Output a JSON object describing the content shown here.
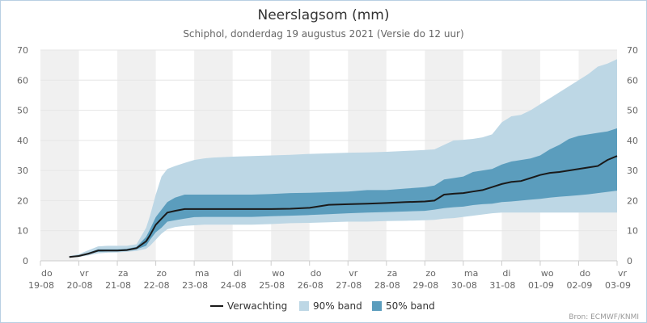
{
  "chart_data": {
    "type": "area",
    "title": "Neerslagsom (mm)",
    "subtitle": "Schiphol, donderdag 19 augustus 2021 (Versie do 12 uur)",
    "source": "Bron: ECMWF/KNMI",
    "x_unit": "days since 19-08 00:00",
    "xlim": [
      0,
      15
    ],
    "ylim": [
      0,
      70
    ],
    "y_ticks": [
      0,
      10,
      20,
      30,
      40,
      50,
      60,
      70
    ],
    "y_tick_labels": [
      "0",
      "10",
      "20",
      "30",
      "40",
      "50",
      "60",
      "70"
    ],
    "x_ticks": [
      {
        "day": "do",
        "date": "19-08"
      },
      {
        "day": "vr",
        "date": "20-08"
      },
      {
        "day": "za",
        "date": "21-08"
      },
      {
        "day": "zo",
        "date": "22-08"
      },
      {
        "day": "ma",
        "date": "23-08"
      },
      {
        "day": "di",
        "date": "24-08"
      },
      {
        "day": "wo",
        "date": "25-08"
      },
      {
        "day": "do",
        "date": "26-08"
      },
      {
        "day": "vr",
        "date": "27-08"
      },
      {
        "day": "za",
        "date": "28-08"
      },
      {
        "day": "zo",
        "date": "29-08"
      },
      {
        "day": "ma",
        "date": "30-08"
      },
      {
        "day": "di",
        "date": "31-08"
      },
      {
        "day": "wo",
        "date": "01-09"
      },
      {
        "day": "do",
        "date": "02-09"
      },
      {
        "day": "vr",
        "date": "03-09"
      }
    ],
    "shaded_days": [
      0,
      2,
      4,
      6,
      8,
      10,
      12,
      14
    ],
    "grid": true,
    "legend": {
      "placement": "bottom",
      "items": [
        {
          "label": "Verwachting",
          "kind": "line",
          "color": "#1a1a1a"
        },
        {
          "label": "90% band",
          "kind": "area",
          "color": "#bdd7e5"
        },
        {
          "label": "50% band",
          "kind": "area",
          "color": "#5b9dbd"
        }
      ]
    },
    "colors": {
      "band90": "#bdd7e5",
      "band50": "#5b9dbd",
      "median": "#1a1a1a",
      "shade": "#f0f0f0"
    },
    "x": [
      0.75,
      1.0,
      1.25,
      1.5,
      1.75,
      2.0,
      2.25,
      2.5,
      2.75,
      2.85,
      3.0,
      3.15,
      3.3,
      3.5,
      3.75,
      4.0,
      4.25,
      4.5,
      5.0,
      5.5,
      6.0,
      6.5,
      7.0,
      7.5,
      8.0,
      8.5,
      9.0,
      9.5,
      10.0,
      10.25,
      10.5,
      10.75,
      11.0,
      11.25,
      11.5,
      11.75,
      12.0,
      12.25,
      12.5,
      12.75,
      13.0,
      13.25,
      13.5,
      13.75,
      14.0,
      14.25,
      14.5,
      14.75,
      15.0
    ],
    "median": [
      1.3,
      1.6,
      2.4,
      3.4,
      3.4,
      3.4,
      3.6,
      4.2,
      6.5,
      8.5,
      12.0,
      14.0,
      16.0,
      16.6,
      17.2,
      17.2,
      17.2,
      17.2,
      17.2,
      17.2,
      17.2,
      17.3,
      17.6,
      18.6,
      18.8,
      19.0,
      19.2,
      19.5,
      19.7,
      20.0,
      22.0,
      22.3,
      22.5,
      23.0,
      23.5,
      24.5,
      25.5,
      26.2,
      26.5,
      27.5,
      28.5,
      29.2,
      29.5,
      30.0,
      30.5,
      31.0,
      31.5,
      33.5,
      34.8
    ],
    "band50_low": [
      1.3,
      1.5,
      2.2,
      3.0,
      3.1,
      3.1,
      3.3,
      3.8,
      5.0,
      7.0,
      9.5,
      11.0,
      13.0,
      13.5,
      14.0,
      14.5,
      14.6,
      14.6,
      14.6,
      14.6,
      14.8,
      15.0,
      15.2,
      15.5,
      15.8,
      16.0,
      16.2,
      16.4,
      16.6,
      17.0,
      17.5,
      17.8,
      18.0,
      18.5,
      18.8,
      19.0,
      19.5,
      19.7,
      20.0,
      20.3,
      20.6,
      21.0,
      21.3,
      21.5,
      21.8,
      22.1,
      22.5,
      22.9,
      23.3
    ],
    "band50_high": [
      1.4,
      1.8,
      2.7,
      3.8,
      3.8,
      3.8,
      4.0,
      4.6,
      8.0,
      10.5,
      14.5,
      17.0,
      19.5,
      21.0,
      22.0,
      22.0,
      22.0,
      22.0,
      22.0,
      22.0,
      22.2,
      22.5,
      22.6,
      22.8,
      23.0,
      23.5,
      23.5,
      24.0,
      24.5,
      25.0,
      27.0,
      27.5,
      28.0,
      29.5,
      30.0,
      30.5,
      32.0,
      33.0,
      33.5,
      34.0,
      35.0,
      37.0,
      38.5,
      40.5,
      41.5,
      42.0,
      42.5,
      43.0,
      44.0
    ],
    "band90_low": [
      1.2,
      1.3,
      1.8,
      2.5,
      2.7,
      2.8,
      3.0,
      3.3,
      4.0,
      5.0,
      7.0,
      9.0,
      10.5,
      11.2,
      11.6,
      11.8,
      12.0,
      12.0,
      12.0,
      12.0,
      12.2,
      12.5,
      12.6,
      12.8,
      13.0,
      13.0,
      13.2,
      13.3,
      13.5,
      13.6,
      14.0,
      14.2,
      14.6,
      15.0,
      15.4,
      15.8,
      16.0,
      16.0,
      16.0,
      16.0,
      16.0,
      16.0,
      16.0,
      16.0,
      16.0,
      16.0,
      16.0,
      16.0,
      16.0
    ],
    "band90_high": [
      1.6,
      2.2,
      3.5,
      4.8,
      5.0,
      5.0,
      5.0,
      5.5,
      11.0,
      15.0,
      22.0,
      28.0,
      30.5,
      31.5,
      32.5,
      33.5,
      34.0,
      34.3,
      34.6,
      34.8,
      35.0,
      35.2,
      35.5,
      35.7,
      35.9,
      36.0,
      36.2,
      36.5,
      36.8,
      37.0,
      38.5,
      40.0,
      40.2,
      40.5,
      41.0,
      42.0,
      46.0,
      48.0,
      48.5,
      50.0,
      52.0,
      54.0,
      56.0,
      58.0,
      60.0,
      62.0,
      64.5,
      65.5,
      67.0
    ]
  }
}
